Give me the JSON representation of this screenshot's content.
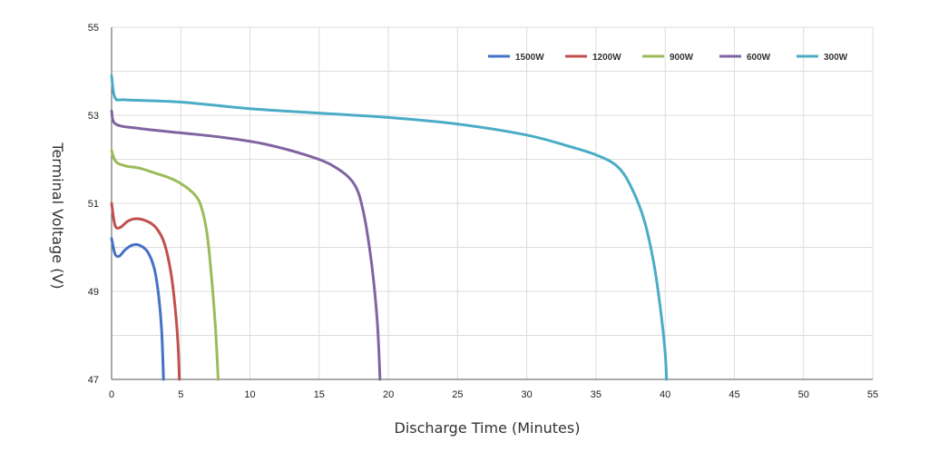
{
  "chart_data": {
    "type": "line",
    "title": "",
    "xlabel": "Discharge Time (Minutes)",
    "ylabel": "Terminal Voltage (V)",
    "xlim": [
      0,
      55
    ],
    "ylim": [
      47,
      55
    ],
    "xticks": [
      0,
      5,
      10,
      15,
      20,
      25,
      30,
      35,
      40,
      45,
      50,
      55
    ],
    "yticks": [
      47,
      49,
      51,
      53,
      55
    ],
    "xtick_labels": [
      "0",
      "5",
      "10",
      "15",
      "20",
      "25",
      "30",
      "35",
      "40",
      "45",
      "50",
      "55"
    ],
    "ytick_labels": [
      "47",
      "49",
      "51",
      "53",
      "55"
    ],
    "grid": true,
    "legend_position": "top-right",
    "series": [
      {
        "name": "1500W",
        "color": "#4472C4",
        "points": [
          [
            0,
            50.2
          ],
          [
            0.25,
            49.85
          ],
          [
            0.55,
            49.8
          ],
          [
            1.0,
            49.95
          ],
          [
            1.5,
            50.05
          ],
          [
            2.0,
            50.05
          ],
          [
            2.6,
            49.9
          ],
          [
            3.1,
            49.5
          ],
          [
            3.4,
            48.9
          ],
          [
            3.6,
            48.2
          ],
          [
            3.7,
            47.5
          ],
          [
            3.75,
            47.0
          ]
        ]
      },
      {
        "name": "1200W",
        "color": "#C0504D",
        "points": [
          [
            0,
            51.0
          ],
          [
            0.25,
            50.5
          ],
          [
            0.6,
            50.45
          ],
          [
            1.2,
            50.6
          ],
          [
            1.8,
            50.65
          ],
          [
            2.5,
            50.6
          ],
          [
            3.2,
            50.45
          ],
          [
            3.8,
            50.1
          ],
          [
            4.3,
            49.4
          ],
          [
            4.6,
            48.6
          ],
          [
            4.8,
            47.8
          ],
          [
            4.9,
            47.0
          ]
        ]
      },
      {
        "name": "900W",
        "color": "#9BBB59",
        "points": [
          [
            0,
            52.2
          ],
          [
            0.3,
            51.95
          ],
          [
            1.0,
            51.85
          ],
          [
            2.0,
            51.8
          ],
          [
            3.0,
            51.7
          ],
          [
            4.0,
            51.6
          ],
          [
            5.0,
            51.45
          ],
          [
            6.0,
            51.2
          ],
          [
            6.5,
            50.9
          ],
          [
            6.9,
            50.3
          ],
          [
            7.2,
            49.4
          ],
          [
            7.5,
            48.2
          ],
          [
            7.7,
            47.0
          ]
        ]
      },
      {
        "name": "600W",
        "color": "#8064A2",
        "points": [
          [
            0,
            53.1
          ],
          [
            0.3,
            52.8
          ],
          [
            2,
            52.7
          ],
          [
            5,
            52.6
          ],
          [
            8,
            52.5
          ],
          [
            11,
            52.35
          ],
          [
            14,
            52.1
          ],
          [
            16,
            51.85
          ],
          [
            17.5,
            51.45
          ],
          [
            18.2,
            50.8
          ],
          [
            18.8,
            49.6
          ],
          [
            19.2,
            48.3
          ],
          [
            19.4,
            47.0
          ]
        ]
      },
      {
        "name": "300W",
        "color": "#4BACC6",
        "points": [
          [
            0,
            53.9
          ],
          [
            0.25,
            53.4
          ],
          [
            1.0,
            53.35
          ],
          [
            5,
            53.3
          ],
          [
            10,
            53.15
          ],
          [
            15,
            53.05
          ],
          [
            20,
            52.95
          ],
          [
            25,
            52.8
          ],
          [
            30,
            52.55
          ],
          [
            33,
            52.3
          ],
          [
            35,
            52.1
          ],
          [
            36.5,
            51.85
          ],
          [
            37.5,
            51.4
          ],
          [
            38.5,
            50.6
          ],
          [
            39.2,
            49.6
          ],
          [
            39.7,
            48.5
          ],
          [
            40.0,
            47.6
          ],
          [
            40.1,
            47.0
          ]
        ]
      }
    ]
  }
}
